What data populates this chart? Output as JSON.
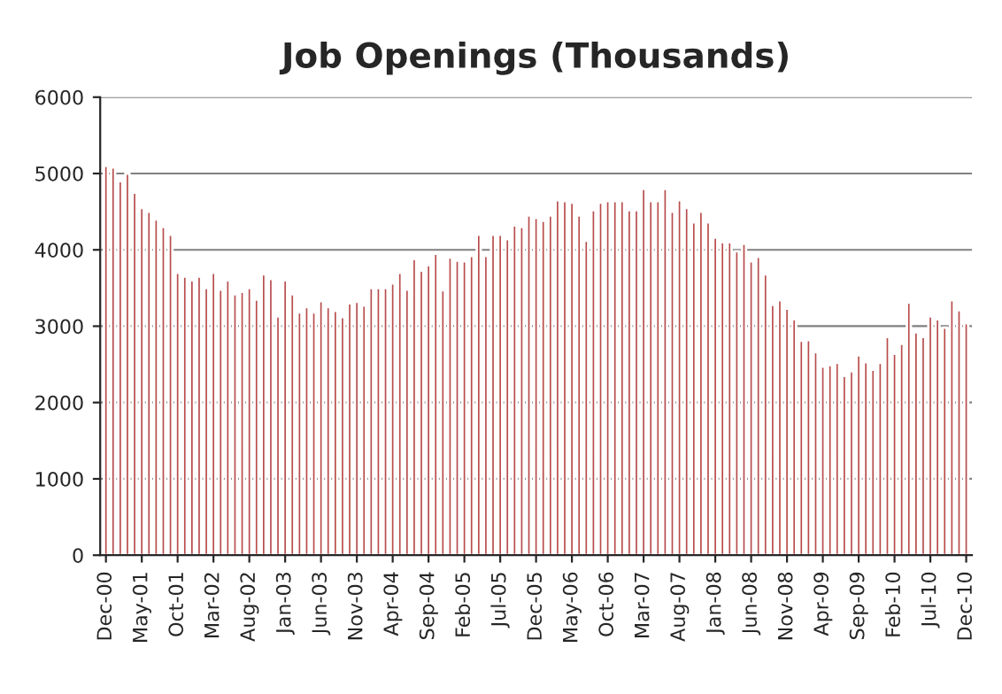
{
  "chart_data": {
    "type": "bar",
    "title": "Job Openings (Thousands)",
    "categories": [
      "Dec-00",
      null,
      null,
      null,
      null,
      "May-01",
      null,
      null,
      null,
      null,
      "Oct-01",
      null,
      null,
      null,
      null,
      "Mar-02",
      null,
      null,
      null,
      null,
      "Aug-02",
      null,
      null,
      null,
      null,
      "Jan-03",
      null,
      null,
      null,
      null,
      "Jun-03",
      null,
      null,
      null,
      null,
      "Nov-03",
      null,
      null,
      null,
      null,
      "Apr-04",
      null,
      null,
      null,
      null,
      "Sep-04",
      null,
      null,
      null,
      null,
      "Feb-05",
      null,
      null,
      null,
      null,
      "Jul-05",
      null,
      null,
      null,
      null,
      "Dec-05",
      null,
      null,
      null,
      null,
      "May-06",
      null,
      null,
      null,
      null,
      "Oct-06",
      null,
      null,
      null,
      null,
      "Mar-07",
      null,
      null,
      null,
      null,
      "Aug-07",
      null,
      null,
      null,
      null,
      "Jan-08",
      null,
      null,
      null,
      null,
      "Jun-08",
      null,
      null,
      null,
      null,
      "Nov-08",
      null,
      null,
      null,
      null,
      "Apr-09",
      null,
      null,
      null,
      null,
      "Sep-09",
      null,
      null,
      null,
      null,
      "Feb-10",
      null,
      null,
      null,
      null,
      "Jul-10",
      null,
      null,
      null,
      null,
      "Dec-10"
    ],
    "values": [
      5100,
      5080,
      4900,
      5000,
      4750,
      4550,
      4500,
      4400,
      4300,
      4200,
      3700,
      3650,
      3600,
      3650,
      3500,
      3700,
      3480,
      3600,
      3420,
      3450,
      3500,
      3350,
      3680,
      3620,
      3130,
      3600,
      3420,
      3180,
      3250,
      3180,
      3330,
      3250,
      3200,
      3120,
      3300,
      3320,
      3270,
      3500,
      3500,
      3500,
      3560,
      3700,
      3480,
      3880,
      3730,
      3800,
      3950,
      3470,
      3900,
      3860,
      3850,
      3920,
      4200,
      3920,
      4200,
      4200,
      4140,
      4320,
      4300,
      4450,
      4420,
      4380,
      4450,
      4650,
      4640,
      4620,
      4450,
      4120,
      4520,
      4620,
      4640,
      4640,
      4640,
      4520,
      4520,
      4800,
      4640,
      4640,
      4800,
      4500,
      4650,
      4550,
      4360,
      4500,
      4360,
      4160,
      4100,
      4100,
      3980,
      4080,
      3850,
      3910,
      3680,
      3280,
      3340,
      3230,
      3090,
      2810,
      2820,
      2660,
      2470,
      2490,
      2520,
      2350,
      2410,
      2620,
      2530,
      2430,
      2520,
      2860,
      2640,
      2770,
      3310,
      2920,
      2860,
      3130,
      3090,
      2980,
      3340,
      3210,
      3040
    ],
    "color": "#b84c4c",
    "ylim": [
      0,
      6000
    ],
    "yticks": [
      0,
      1000,
      2000,
      3000,
      4000,
      5000,
      6000
    ],
    "grid": "y"
  }
}
